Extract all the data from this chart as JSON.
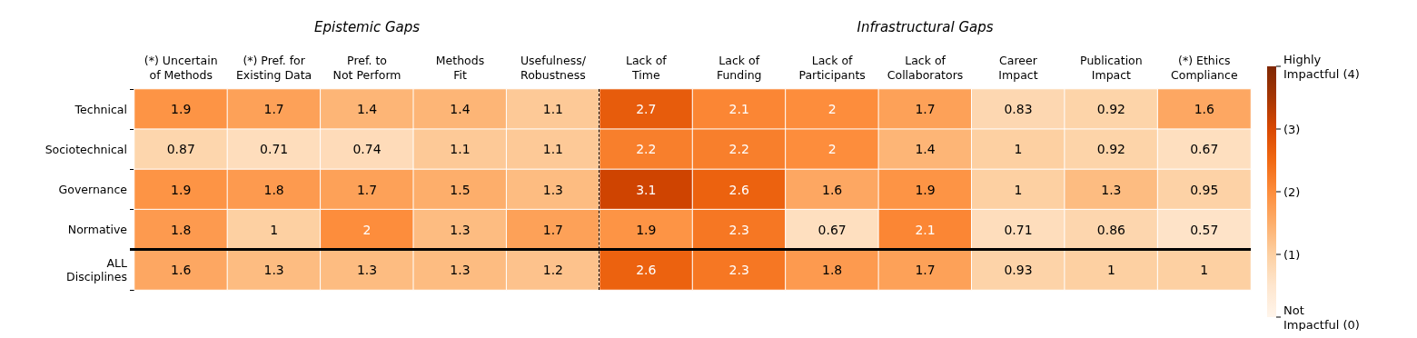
{
  "chart_data": {
    "type": "heatmap",
    "categories": [
      "(*) Uncertain\nof Methods",
      "(*) Pref. for\nExisting Data",
      "Pref. to\nNot Perform",
      "Methods\nFit",
      "Usefulness/\nRobustness",
      "Lack of\nTime",
      "Lack of\nFunding",
      "Lack of\nParticipants",
      "Lack of\nCollaborators",
      "Career\nImpact",
      "Publication\nImpact",
      "(*) Ethics\nCompliance"
    ],
    "y_categories": [
      "Technical",
      "Sociotechnical",
      "Governance",
      "Normative",
      "ALL\nDisciplines"
    ],
    "cells": [
      [
        1.9,
        1.7,
        1.4,
        1.4,
        1.1,
        2.7,
        2.1,
        2,
        1.7,
        0.83,
        0.92,
        1.6
      ],
      [
        0.87,
        0.71,
        0.74,
        1.1,
        1.1,
        2.2,
        2.2,
        2,
        1.4,
        1,
        0.92,
        0.67
      ],
      [
        1.9,
        1.8,
        1.7,
        1.5,
        1.3,
        3.1,
        2.6,
        1.6,
        1.9,
        1,
        1.3,
        0.95
      ],
      [
        1.8,
        1,
        2,
        1.3,
        1.7,
        1.9,
        2.3,
        0.67,
        2.1,
        0.71,
        0.86,
        0.57
      ],
      [
        1.6,
        1.3,
        1.3,
        1.3,
        1.2,
        2.6,
        2.3,
        1.8,
        1.7,
        0.93,
        1,
        1
      ]
    ],
    "data_labels": true,
    "clim": [
      0,
      4
    ],
    "cticks": [
      {
        "value": 0,
        "label": "Not\nImpactful (0)"
      },
      {
        "value": 1,
        "label": "(1)"
      },
      {
        "value": 2,
        "label": "(2)"
      },
      {
        "value": 3,
        "label": "(3)"
      },
      {
        "value": 4,
        "label": "Highly\nImpactful (4)"
      }
    ],
    "annotations": [
      "Epistemic Gaps",
      "Infrastructural Gaps"
    ]
  }
}
